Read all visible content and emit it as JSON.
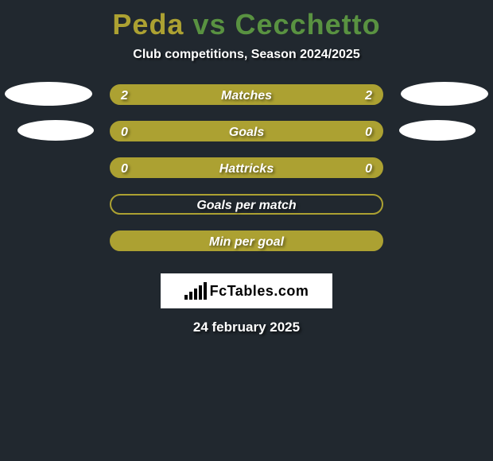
{
  "header": {
    "player_left": "Peda",
    "vs": "vs",
    "player_right": "Cecchetto",
    "subtitle": "Club competitions, Season 2024/2025",
    "left_color": "#aca132",
    "right_color": "#599241"
  },
  "rows": [
    {
      "label": "Matches",
      "left_value": "2",
      "right_value": "2",
      "bar_fill": "#aca132",
      "bar_border": "#aca132",
      "show_values": true,
      "ellipse_left": true,
      "ellipse_right": true,
      "ellipse_size": "lg"
    },
    {
      "label": "Goals",
      "left_value": "0",
      "right_value": "0",
      "bar_fill": "#aca132",
      "bar_border": "#aca132",
      "show_values": true,
      "ellipse_left": true,
      "ellipse_right": true,
      "ellipse_size": "sm"
    },
    {
      "label": "Hattricks",
      "left_value": "0",
      "right_value": "0",
      "bar_fill": "#aca132",
      "bar_border": "#aca132",
      "show_values": true,
      "ellipse_left": false,
      "ellipse_right": false
    },
    {
      "label": "Goals per match",
      "bar_fill": "transparent",
      "bar_border": "#aca132",
      "show_values": false,
      "ellipse_left": false,
      "ellipse_right": false
    },
    {
      "label": "Min per goal",
      "bar_fill": "#aca132",
      "bar_border": "#aca132",
      "show_values": false,
      "ellipse_left": false,
      "ellipse_right": false
    }
  ],
  "logo": {
    "icon_color": "#000000",
    "text": "FcTables.com"
  },
  "date": "24 february 2025",
  "colors": {
    "background": "#21282f",
    "text": "#ffffff"
  }
}
